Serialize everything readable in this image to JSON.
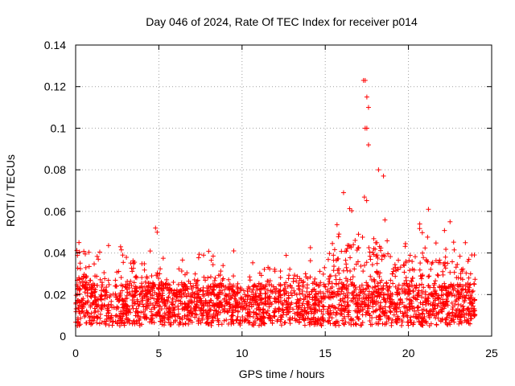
{
  "chart_data": {
    "type": "scatter",
    "title": "Day 046 of 2024, Rate Of TEC Index for receiver p014",
    "xlabel": "GPS time / hours",
    "ylabel": "ROTI / TECUs",
    "xlim": [
      0,
      25
    ],
    "ylim": [
      0,
      0.14
    ],
    "xticks": [
      0,
      5,
      10,
      15,
      20,
      25
    ],
    "xtick_labels": [
      "0",
      "5",
      "10",
      "15",
      "20",
      "25"
    ],
    "yticks": [
      0,
      0.02,
      0.04,
      0.06,
      0.08,
      0.1,
      0.12,
      0.14
    ],
    "ytick_labels": [
      "0",
      "0.02",
      "0.04",
      "0.06",
      "0.08",
      "0.1",
      "0.12",
      "0.14"
    ],
    "grid": true,
    "marker": "+",
    "color": "#ff0000",
    "x_range_of_data": [
      0,
      24
    ],
    "baseline_roti": 0.015,
    "notable_points": [
      {
        "x": 0.2,
        "y": 0.045
      },
      {
        "x": 4.8,
        "y": 0.052
      },
      {
        "x": 4.9,
        "y": 0.05
      },
      {
        "x": 17.3,
        "y": 0.123
      },
      {
        "x": 17.4,
        "y": 0.123
      },
      {
        "x": 17.5,
        "y": 0.115
      },
      {
        "x": 17.6,
        "y": 0.11
      },
      {
        "x": 17.4,
        "y": 0.1
      },
      {
        "x": 17.5,
        "y": 0.1
      },
      {
        "x": 17.6,
        "y": 0.092
      },
      {
        "x": 18.2,
        "y": 0.08
      },
      {
        "x": 18.5,
        "y": 0.077
      },
      {
        "x": 16.1,
        "y": 0.069
      },
      {
        "x": 21.2,
        "y": 0.061
      },
      {
        "x": 22.5,
        "y": 0.055
      },
      {
        "x": 2.7,
        "y": 0.043
      },
      {
        "x": 9.5,
        "y": 0.041
      }
    ],
    "envelope": [
      {
        "t": 0,
        "hi": 0.035
      },
      {
        "t": 1,
        "hi": 0.032
      },
      {
        "t": 2,
        "hi": 0.038
      },
      {
        "t": 3,
        "hi": 0.035
      },
      {
        "t": 4,
        "hi": 0.033
      },
      {
        "t": 5,
        "hi": 0.034
      },
      {
        "t": 6,
        "hi": 0.028
      },
      {
        "t": 7,
        "hi": 0.03
      },
      {
        "t": 8,
        "hi": 0.034
      },
      {
        "t": 9,
        "hi": 0.036
      },
      {
        "t": 10,
        "hi": 0.028
      },
      {
        "t": 11,
        "hi": 0.027
      },
      {
        "t": 12,
        "hi": 0.028
      },
      {
        "t": 13,
        "hi": 0.036
      },
      {
        "t": 14,
        "hi": 0.035
      },
      {
        "t": 15,
        "hi": 0.04
      },
      {
        "t": 16,
        "hi": 0.05
      },
      {
        "t": 17,
        "hi": 0.06
      },
      {
        "t": 18,
        "hi": 0.06
      },
      {
        "t": 19,
        "hi": 0.045
      },
      {
        "t": 20,
        "hi": 0.045
      },
      {
        "t": 21,
        "hi": 0.048
      },
      {
        "t": 22,
        "hi": 0.045
      },
      {
        "t": 23,
        "hi": 0.04
      },
      {
        "t": 24,
        "hi": 0.033
      }
    ]
  }
}
